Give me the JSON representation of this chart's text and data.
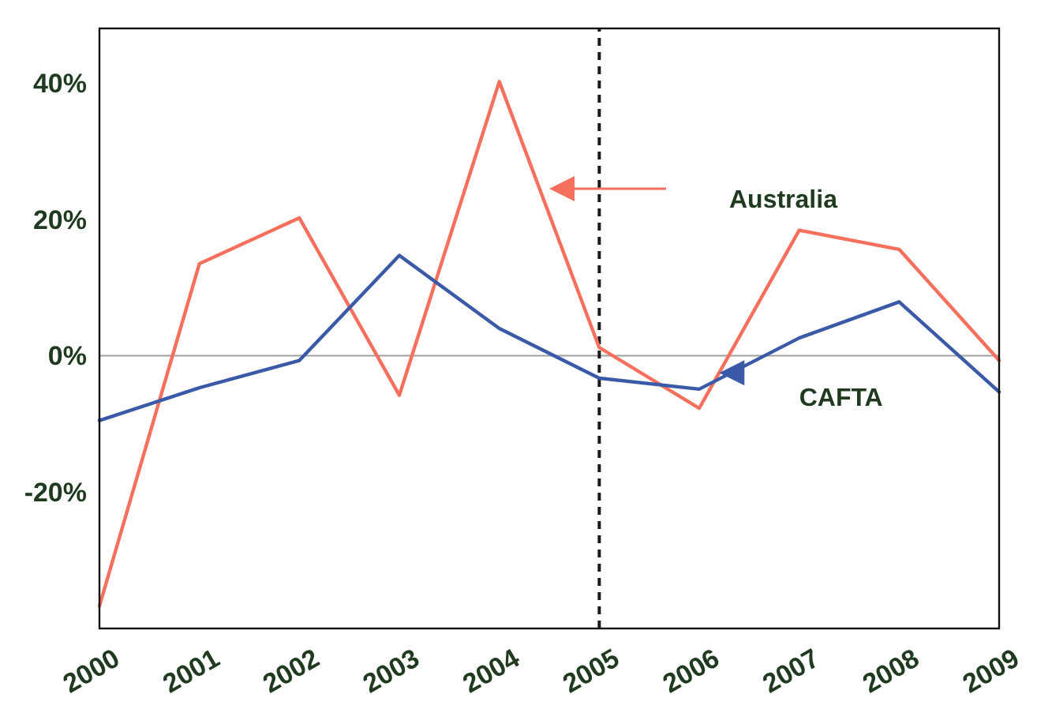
{
  "chart_data": {
    "type": "line",
    "x": [
      2000,
      2001,
      2002,
      2003,
      2004,
      2005,
      2006,
      2007,
      2008,
      2009
    ],
    "xlim": [
      2000,
      2009
    ],
    "xticks": [
      2000,
      2001,
      2002,
      2003,
      2004,
      2005,
      2006,
      2007,
      2008,
      2009
    ],
    "ylim": [
      -40,
      48
    ],
    "yticks": [
      {
        "value": -20,
        "label": "-20%"
      },
      {
        "value": 0,
        "label": "0%"
      },
      {
        "value": 20,
        "label": "20%"
      },
      {
        "value": 40,
        "label": "40%"
      }
    ],
    "series": [
      {
        "name": "Australia",
        "color": "#f7705e",
        "values": [
          -36.7,
          13.5,
          20.2,
          -5.8,
          40.2,
          1.2,
          -7.7,
          18.4,
          15.6,
          -0.7
        ]
      },
      {
        "name": "CAFTA",
        "color": "#3a5aa8",
        "values": [
          -9.5,
          -4.7,
          -0.7,
          14.7,
          4,
          -3.3,
          -4.9,
          2.6,
          7.9,
          -5.3
        ]
      }
    ],
    "ref_lines": [
      {
        "axis": "y",
        "value": 0,
        "color": "#a0a0a0",
        "line_style": "solid"
      },
      {
        "axis": "x",
        "value": 2005,
        "color": "#1a1a1a",
        "line_style": "dashed"
      }
    ],
    "grid": false,
    "legend": false,
    "marker": "none",
    "line_style": "solid"
  }
}
